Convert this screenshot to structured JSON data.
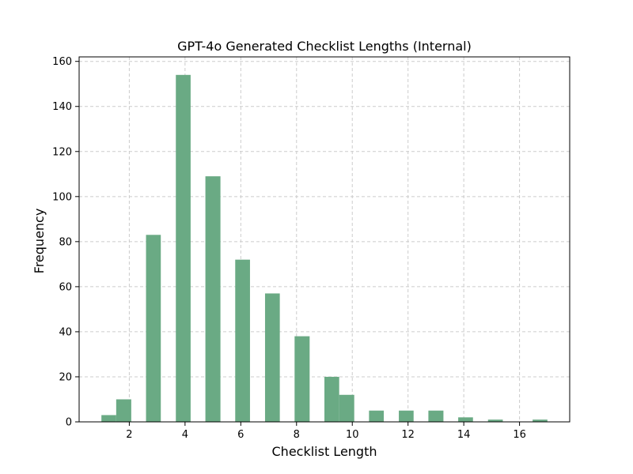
{
  "chart_data": {
    "type": "bar",
    "title": "GPT-4o Generated Checklist Lengths (Internal)",
    "xlabel": "Checklist Length",
    "ylabel": "Frequency",
    "xlim": [
      0.2,
      17.8
    ],
    "ylim": [
      0,
      162
    ],
    "grid": true,
    "bar_color": "#6aaa84",
    "grid_color": "#cccccc",
    "xticks": [
      2,
      4,
      6,
      8,
      10,
      12,
      14,
      16
    ],
    "yticks": [
      0,
      20,
      40,
      60,
      80,
      100,
      120,
      140,
      160
    ],
    "bins": [
      {
        "x0": 1.0,
        "x1": 1.53,
        "value": 3
      },
      {
        "x0": 1.53,
        "x1": 2.07,
        "value": 10
      },
      {
        "x0": 2.6,
        "x1": 3.13,
        "value": 83
      },
      {
        "x0": 3.67,
        "x1": 4.2,
        "value": 154
      },
      {
        "x0": 4.73,
        "x1": 5.27,
        "value": 109
      },
      {
        "x0": 5.8,
        "x1": 6.33,
        "value": 72
      },
      {
        "x0": 6.87,
        "x1": 7.4,
        "value": 57
      },
      {
        "x0": 7.93,
        "x1": 8.47,
        "value": 38
      },
      {
        "x0": 9.0,
        "x1": 9.53,
        "value": 20
      },
      {
        "x0": 9.53,
        "x1": 10.07,
        "value": 12
      },
      {
        "x0": 10.6,
        "x1": 11.13,
        "value": 5
      },
      {
        "x0": 11.67,
        "x1": 12.2,
        "value": 5
      },
      {
        "x0": 12.73,
        "x1": 13.27,
        "value": 5
      },
      {
        "x0": 13.8,
        "x1": 14.33,
        "value": 2
      },
      {
        "x0": 14.87,
        "x1": 15.4,
        "value": 1
      },
      {
        "x0": 16.47,
        "x1": 17.0,
        "value": 1
      }
    ]
  }
}
